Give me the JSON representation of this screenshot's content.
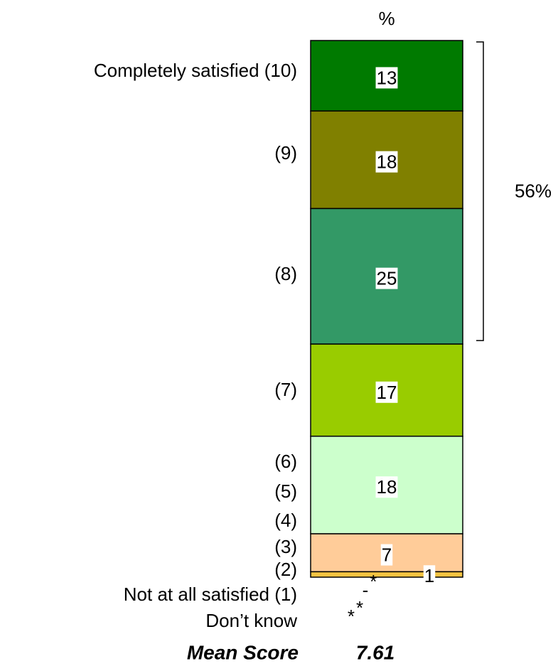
{
  "chart_data": {
    "type": "stacked_bar",
    "unit_label": "%",
    "segments": [
      {
        "value": 13,
        "color": "#007a00"
      },
      {
        "value": 18,
        "color": "#808000"
      },
      {
        "value": 25,
        "color": "#339966"
      },
      {
        "value": 17,
        "color": "#99cc00"
      },
      {
        "value": 18,
        "color": "#ccffcc"
      },
      {
        "value": 7,
        "color": "#ffcc99"
      },
      {
        "value": 1,
        "color": "#f5c342"
      }
    ],
    "row_labels": [
      "Completely satisfied (10)",
      "(9)",
      "(8)",
      "(7)",
      "(6)",
      "(5)",
      "(4)",
      "(3)",
      "(2)"
    ],
    "extra_rows": [
      {
        "label": "Not at all satisfied (1)",
        "value_label": "-*"
      },
      {
        "label": "Don’t know",
        "value_label": "**"
      }
    ],
    "bracket": {
      "value": 56,
      "label": "56%"
    },
    "mean_label": "Mean Score",
    "mean_value": 7.61
  }
}
